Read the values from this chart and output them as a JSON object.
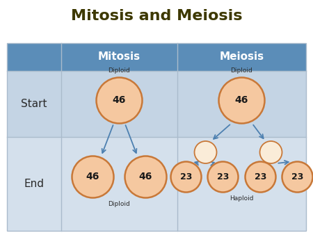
{
  "title": "Mitosis and Meiosis",
  "title_color": "#3d3800",
  "title_fontsize": 16,
  "title_fontweight": "bold",
  "bg_color": "#ffffff",
  "table_bg_start": "#c8d4e0",
  "table_bg_end": "#d8e4f0",
  "header_bg": "#5b8db8",
  "header_text_color": "#ffffff",
  "row_label_color": "#2a2a2a",
  "col_headers": [
    "Mitosis",
    "Meiosis"
  ],
  "row_labels": [
    "Start",
    "End"
  ],
  "circle_fill": "#f5c8a0",
  "circle_edge": "#c87838",
  "small_circle_fill": "#faecd8",
  "small_circle_edge": "#c87838",
  "arrow_color": "#4d80b0",
  "number_color": "#1a1a1a",
  "label_color": "#2a2a2a",
  "grid_color": "#aabbcc"
}
